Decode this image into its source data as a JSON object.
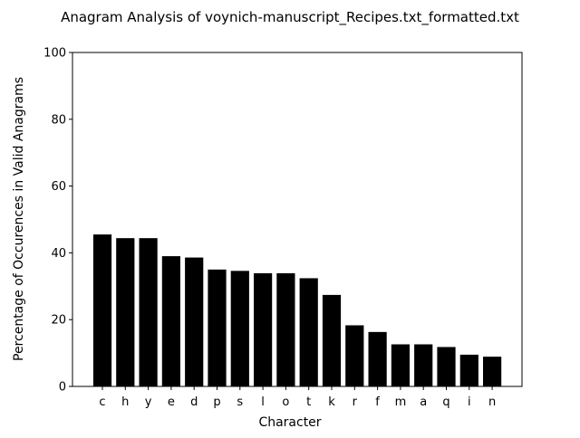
{
  "chart_data": {
    "type": "bar",
    "title": "Anagram Analysis of voynich-manuscript_Recipes.txt_formatted.txt",
    "xlabel": "Character",
    "ylabel": "Percentage of Occurences in Valid Anagrams",
    "categories": [
      "c",
      "h",
      "y",
      "e",
      "d",
      "p",
      "s",
      "l",
      "o",
      "t",
      "k",
      "r",
      "f",
      "m",
      "a",
      "q",
      "i",
      "n"
    ],
    "values": [
      45.5,
      44.4,
      44.4,
      39.0,
      38.6,
      35.0,
      34.6,
      33.9,
      33.9,
      32.4,
      27.4,
      18.3,
      16.3,
      12.6,
      12.6,
      11.8,
      9.5,
      8.9
    ],
    "ylim": [
      0,
      100
    ],
    "yticks": [
      0,
      20,
      40,
      60,
      80,
      100
    ],
    "bar_color": "#000000",
    "grid": false,
    "legend": "none"
  }
}
